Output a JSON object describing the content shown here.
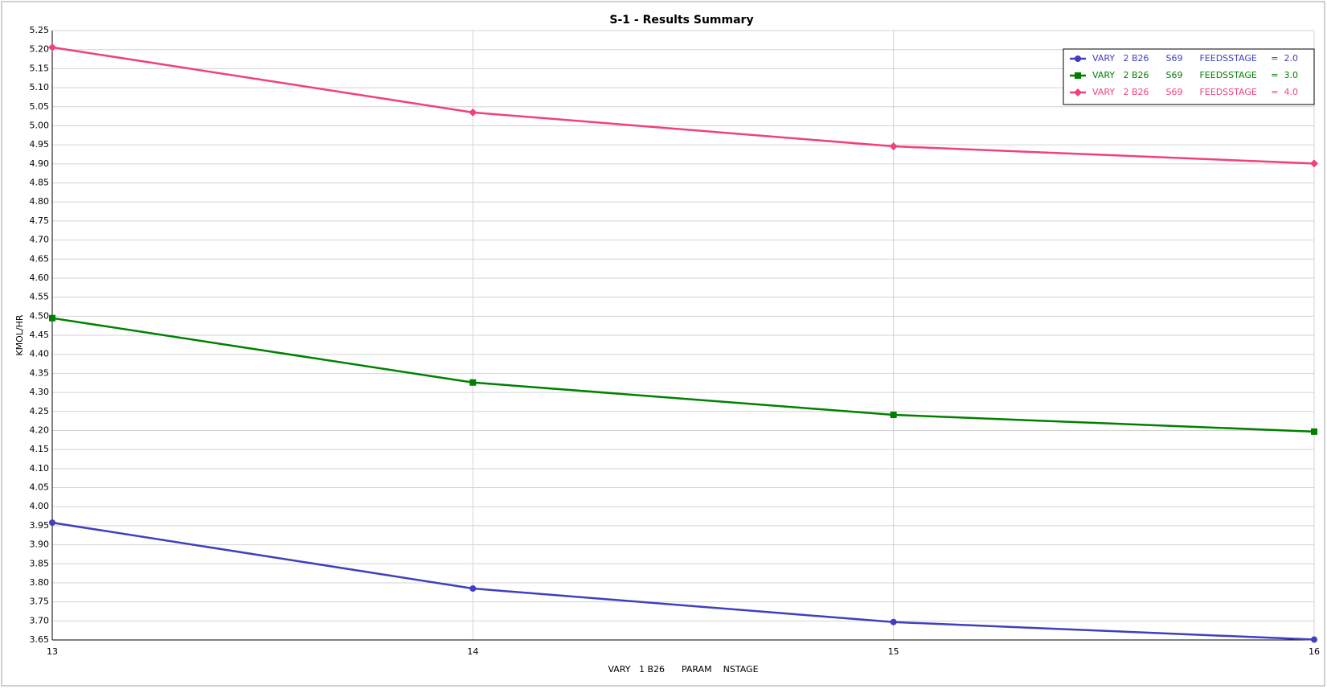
{
  "chart_data": {
    "type": "line",
    "title": "S-1 - Results Summary",
    "xlabel": "VARY   1 B26      PARAM    NSTAGE",
    "ylabel": "KMOL/HR",
    "x": [
      13,
      14,
      15,
      16
    ],
    "xlim": [
      13,
      16
    ],
    "xticks": [
      13,
      14,
      15,
      16
    ],
    "ylim": [
      3.65,
      5.25
    ],
    "yticks": [
      3.65,
      {
        "value": 3.7,
        "label": "3.70"
      },
      3.75,
      {
        "value": 3.8,
        "label": "3.80"
      },
      3.85,
      {
        "value": 3.9,
        "label": "3.90"
      },
      3.95,
      {
        "value": 4.0,
        "label": "4.00"
      },
      4.05,
      {
        "value": 4.1,
        "label": "4.10"
      },
      4.15,
      {
        "value": 4.2,
        "label": "4.20"
      },
      4.25,
      {
        "value": 4.3,
        "label": "4.30"
      },
      4.35,
      {
        "value": 4.4,
        "label": "4.40"
      },
      4.45,
      {
        "value": 4.5,
        "label": "4.50"
      },
      4.55,
      {
        "value": 4.6,
        "label": "4.60"
      },
      4.65,
      {
        "value": 4.7,
        "label": "4.70"
      },
      4.75,
      {
        "value": 4.8,
        "label": "4.80"
      },
      4.85,
      {
        "value": 4.9,
        "label": "4.90"
      },
      4.95,
      {
        "value": 5.0,
        "label": "5.00"
      },
      5.05,
      {
        "value": 5.1,
        "label": "5.10"
      },
      5.15,
      {
        "value": 5.2,
        "label": "5.20"
      },
      5.25
    ],
    "grid": true,
    "legend": "upper right",
    "series": [
      {
        "name": "VARY   2 B26      S69      FEEDSSTAGE     =  2.0",
        "color": "#3f3fbf",
        "marker": "circle",
        "values": [
          3.958,
          3.785,
          3.697,
          3.651
        ]
      },
      {
        "name": "VARY   2 B26      S69      FEEDSSTAGE     =  3.0",
        "color": "#008000",
        "marker": "square",
        "values": [
          4.495,
          4.326,
          4.241,
          4.197
        ]
      },
      {
        "name": "VARY   2 B26      S69      FEEDSSTAGE     =  4.0",
        "color": "#f0407f",
        "marker": "diamond",
        "values": [
          5.206,
          5.035,
          4.946,
          4.901
        ]
      }
    ]
  }
}
